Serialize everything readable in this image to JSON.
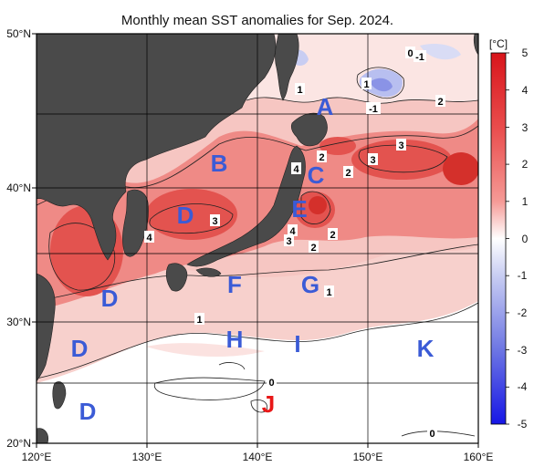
{
  "title": "Monthly mean SST anomalies for Sep. 2024.",
  "axes": {
    "lon_labels": [
      "120°E",
      "130°E",
      "140°E",
      "150°E",
      "160°E"
    ],
    "lat_labels": [
      "50°N",
      "40°N",
      "30°N",
      "20°N"
    ]
  },
  "colorbar": {
    "unit": "[°C]",
    "ticks": [
      "5",
      "4",
      "3",
      "2",
      "1",
      "0",
      "-1",
      "-2",
      "-3",
      "-4",
      "-5"
    ],
    "warm_color": "#e8242a",
    "cool_color": "#1a1ae8"
  },
  "regions": [
    {
      "id": "A",
      "label": "A",
      "color": "#3b5bd6"
    },
    {
      "id": "B",
      "label": "B",
      "color": "#3b5bd6"
    },
    {
      "id": "C",
      "label": "C",
      "color": "#3b5bd6"
    },
    {
      "id": "D1",
      "label": "D",
      "color": "#3b5bd6"
    },
    {
      "id": "D2",
      "label": "D",
      "color": "#3b5bd6"
    },
    {
      "id": "D3",
      "label": "D",
      "color": "#3b5bd6"
    },
    {
      "id": "D4",
      "label": "D",
      "color": "#3b5bd6"
    },
    {
      "id": "E",
      "label": "E",
      "color": "#3b5bd6"
    },
    {
      "id": "F",
      "label": "F",
      "color": "#3b5bd6"
    },
    {
      "id": "G",
      "label": "G",
      "color": "#3b5bd6"
    },
    {
      "id": "H",
      "label": "H",
      "color": "#3b5bd6"
    },
    {
      "id": "I",
      "label": "I",
      "color": "#3b5bd6"
    },
    {
      "id": "J",
      "label": "J",
      "color": "#e81818"
    },
    {
      "id": "K",
      "label": "K",
      "color": "#3b5bd6"
    }
  ],
  "contour_labels": [
    "0",
    "-1",
    "1",
    "1",
    "2",
    "-1",
    "3",
    "2",
    "4",
    "2",
    "3",
    "3",
    "4",
    "4",
    "2",
    "3",
    "2",
    "1",
    "1",
    "0",
    "0"
  ]
}
